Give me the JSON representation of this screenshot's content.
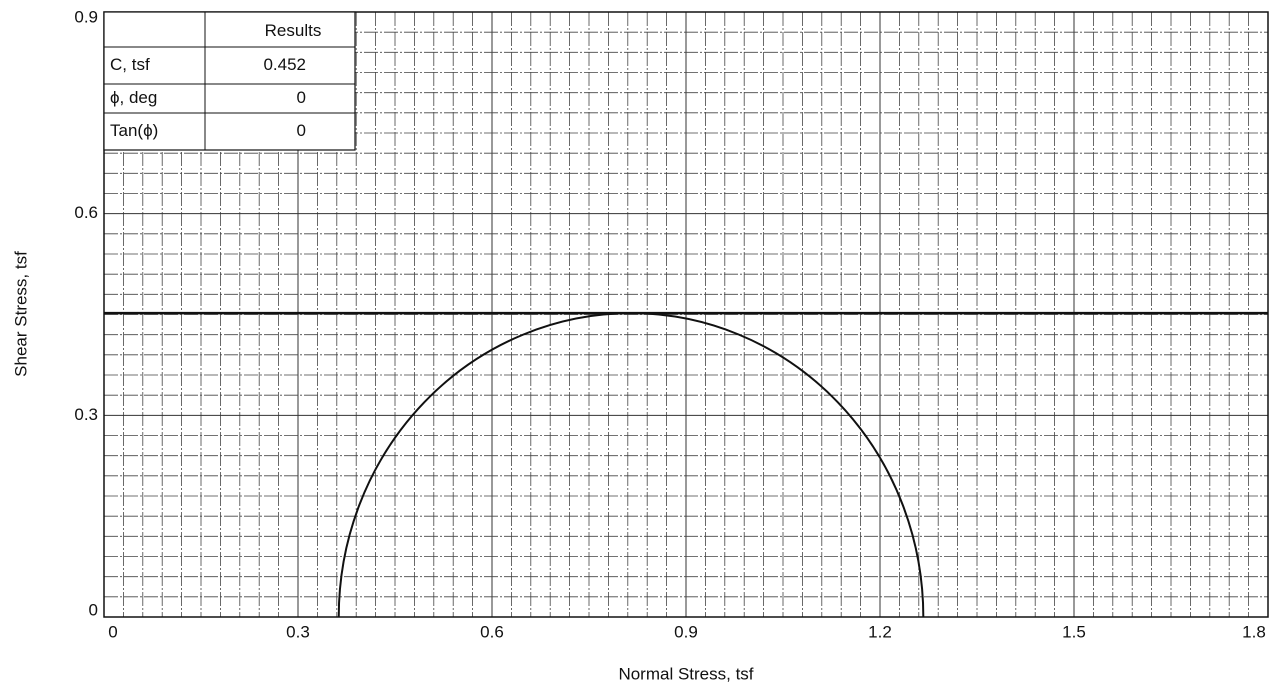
{
  "chart_data": {
    "type": "mohr",
    "xlabel": "Normal Stress, tsf",
    "ylabel": "Shear Stress, tsf",
    "xlim": [
      0,
      1.8
    ],
    "ylim": [
      0,
      0.9
    ],
    "xticks": [
      0,
      0.3,
      0.6,
      0.9,
      1.2,
      1.5,
      1.8
    ],
    "yticks": [
      0,
      0.3,
      0.6,
      0.9
    ],
    "grid": true,
    "color": "#111111",
    "circles": [
      {
        "center": 0.815,
        "radius": 0.452
      }
    ],
    "results": {
      "header": "Results",
      "rows": [
        {
          "label": "C, tsf",
          "value": 0.452
        },
        {
          "label": "ϕ, deg",
          "value": 0
        },
        {
          "label": "Tan(ϕ)",
          "value": 0
        }
      ]
    }
  }
}
